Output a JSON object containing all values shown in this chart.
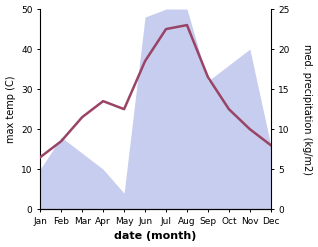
{
  "months": [
    "Jan",
    "Feb",
    "Mar",
    "Apr",
    "May",
    "Jun",
    "Jul",
    "Aug",
    "Sep",
    "Oct",
    "Nov",
    "Dec"
  ],
  "temp_line": [
    13,
    17,
    23,
    27,
    25,
    37,
    45,
    46,
    33,
    25,
    20,
    16
  ],
  "precip_mm": [
    5,
    9,
    7,
    5,
    2,
    24,
    25,
    25,
    16,
    18,
    20,
    8
  ],
  "xlabel": "date (month)",
  "ylabel_left": "max temp (C)",
  "ylabel_right": "med. precipitation (kg/m2)",
  "ylim_left": [
    0,
    50
  ],
  "ylim_right": [
    0,
    25
  ],
  "yticks_left": [
    0,
    10,
    20,
    30,
    40,
    50
  ],
  "yticks_right": [
    0,
    5,
    10,
    15,
    20,
    25
  ],
  "line_color": "#994466",
  "fill_color": "#b0b8e8",
  "fill_alpha": 0.7,
  "bg_color": "#ffffff",
  "line_width": 1.8,
  "xlabel_fontsize": 8,
  "ylabel_fontsize": 7,
  "tick_fontsize": 6.5
}
